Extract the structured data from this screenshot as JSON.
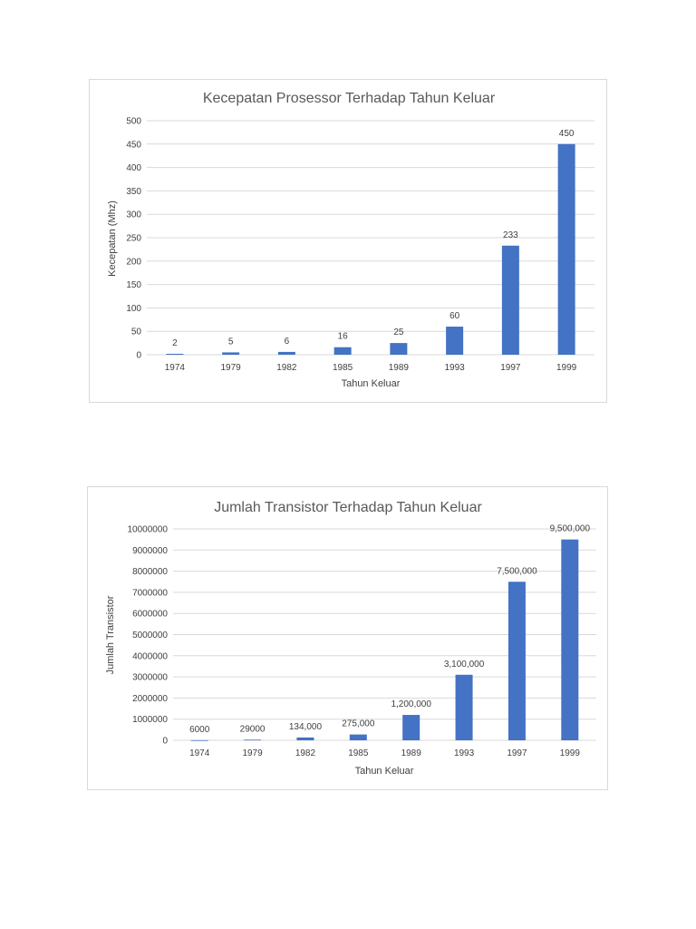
{
  "chart_data": [
    {
      "type": "bar",
      "title": "Kecepatan Prosessor Terhadap Tahun Keluar",
      "xlabel": "Tahun Keluar",
      "ylabel": "Kecepatan (Mhz)",
      "categories": [
        "1974",
        "1979",
        "1982",
        "1985",
        "1989",
        "1993",
        "1997",
        "1999"
      ],
      "values": [
        2,
        5,
        6,
        16,
        25,
        60,
        233,
        450
      ],
      "data_labels": [
        "2",
        "5",
        "6",
        "16",
        "25",
        "60",
        "233",
        "450"
      ],
      "ylim": [
        0,
        500
      ],
      "yticks": [
        0,
        50,
        100,
        150,
        200,
        250,
        300,
        350,
        400,
        450,
        500
      ],
      "ytick_labels": [
        "0",
        "50",
        "100",
        "150",
        "200",
        "250",
        "300",
        "350",
        "400",
        "450",
        "500"
      ],
      "grid": true,
      "color": "#4472c4"
    },
    {
      "type": "bar",
      "title": "Jumlah Transistor Terhadap Tahun Keluar",
      "xlabel": "Tahun Keluar",
      "ylabel": "Jumlah Transistor",
      "categories": [
        "1974",
        "1979",
        "1982",
        "1985",
        "1989",
        "1993",
        "1997",
        "1999"
      ],
      "values": [
        6000,
        29000,
        134000,
        275000,
        1200000,
        3100000,
        7500000,
        9500000
      ],
      "data_labels": [
        "6000",
        "29000",
        "134,000",
        "275,000",
        "1,200,000",
        "3,100,000",
        "7,500,000",
        "9,500,000"
      ],
      "ylim": [
        0,
        10000000
      ],
      "yticks": [
        0,
        1000000,
        2000000,
        3000000,
        4000000,
        5000000,
        6000000,
        7000000,
        8000000,
        9000000,
        10000000
      ],
      "ytick_labels": [
        "0",
        "1000000",
        "2000000",
        "3000000",
        "4000000",
        "5000000",
        "6000000",
        "7000000",
        "8000000",
        "9000000",
        "10000000"
      ],
      "grid": true,
      "color": "#4472c4"
    }
  ]
}
